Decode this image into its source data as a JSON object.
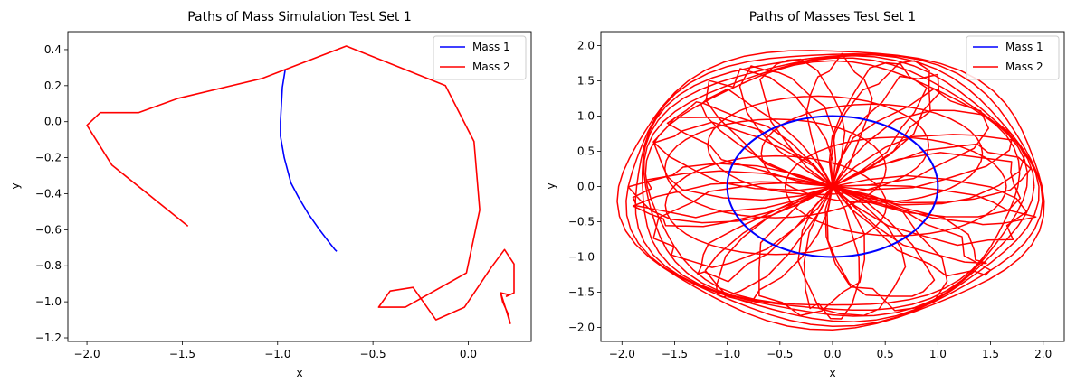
{
  "chart_data": [
    {
      "type": "line",
      "title": "Paths of Mass Simulation Test Set 1",
      "xlabel": "x",
      "ylabel": "y",
      "xlim": [
        -2.1,
        0.33
      ],
      "ylim": [
        -1.22,
        0.5
      ],
      "xticks": [
        -2.0,
        -1.5,
        -1.0,
        -0.5,
        0.0
      ],
      "xtick_labels": [
        "−2.0",
        "−1.5",
        "−1.0",
        "−0.5",
        "0.0"
      ],
      "yticks": [
        -1.2,
        -1.0,
        -0.8,
        -0.6,
        -0.4,
        -0.2,
        0.0,
        0.2,
        0.4
      ],
      "ytick_labels": [
        "−1.2",
        "−1.0",
        "−0.8",
        "−0.6",
        "−0.4",
        "−0.2",
        "0.0",
        "0.2",
        "0.4"
      ],
      "legend_position": "top-right",
      "series": [
        {
          "name": "Mass 1",
          "color": "#0000ff",
          "x": [
            -0.96,
            -0.975,
            -0.985,
            -0.985,
            -0.965,
            -0.93,
            -0.89,
            -0.84,
            -0.78,
            -0.73,
            -0.7,
            -0.69
          ],
          "y": [
            0.29,
            0.19,
            0.0,
            -0.08,
            -0.2,
            -0.34,
            -0.42,
            -0.51,
            -0.6,
            -0.67,
            -0.71,
            -0.72
          ]
        },
        {
          "name": "Mass 2",
          "color": "#ff0000",
          "x": [
            -1.47,
            -1.87,
            -2.0,
            -1.93,
            -1.73,
            -1.52,
            -1.08,
            -0.64,
            -0.12,
            0.03,
            0.06,
            -0.01,
            -0.33,
            -0.47,
            -0.41,
            -0.29,
            -0.17,
            -0.02,
            0.12,
            0.19,
            0.24,
            0.24,
            0.2,
            0.21,
            0.17,
            0.18,
            0.21,
            0.22,
            0.2,
            0.17
          ],
          "y": [
            -0.58,
            -0.24,
            -0.02,
            0.05,
            0.05,
            0.13,
            0.24,
            0.42,
            0.2,
            -0.11,
            -0.49,
            -0.84,
            -1.03,
            -1.03,
            -0.94,
            -0.92,
            -1.1,
            -1.03,
            -0.81,
            -0.71,
            -0.79,
            -0.95,
            -0.97,
            -0.96,
            -0.95,
            -1.0,
            -1.07,
            -1.12,
            -1.05,
            -0.95
          ]
        }
      ]
    },
    {
      "type": "line",
      "title": "Paths of Masses Test Set 1",
      "xlabel": "x",
      "ylabel": "y",
      "xlim": [
        -2.2,
        2.2
      ],
      "ylim": [
        -2.2,
        2.2
      ],
      "xticks": [
        -2.0,
        -1.5,
        -1.0,
        -0.5,
        0.0,
        0.5,
        1.0,
        1.5,
        2.0
      ],
      "xtick_labels": [
        "−2.0",
        "−1.5",
        "−1.0",
        "−0.5",
        "0.0",
        "0.5",
        "1.0",
        "1.5",
        "2.0"
      ],
      "yticks": [
        -2.0,
        -1.5,
        -1.0,
        -0.5,
        0.0,
        0.5,
        1.0,
        1.5,
        2.0
      ],
      "ytick_labels": [
        "−2.0",
        "−1.5",
        "−1.0",
        "−0.5",
        "0.0",
        "0.5",
        "1.0",
        "1.5",
        "2.0"
      ],
      "legend_position": "top-right",
      "series": [
        {
          "name": "Mass 1",
          "color": "#0000ff",
          "shape": "circle",
          "radius": 1.0,
          "center": [
            0.0,
            0.0
          ]
        },
        {
          "name": "Mass 2",
          "color": "#ff0000",
          "shape": "rosette",
          "outer_radius_x": 2.0,
          "outer_radius_y": 1.97,
          "inner_radius": 0.0,
          "loops": 32
        }
      ]
    }
  ]
}
